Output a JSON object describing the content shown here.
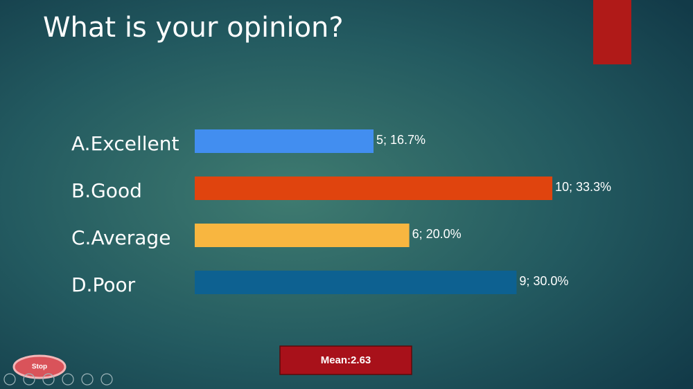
{
  "chart_data": {
    "type": "bar",
    "orientation": "horizontal",
    "title": "What is your opinion?",
    "categories": [
      "A.Excellent",
      "B.Good",
      "C.Average",
      "D.Poor"
    ],
    "values": [
      5,
      10,
      6,
      9
    ],
    "value_labels": [
      "5;  16.7%",
      "10;  33.3%",
      "6;  20.0%",
      "9;  30.0%"
    ],
    "colors": [
      "#428ef0",
      "#e0440e",
      "#f8b640",
      "#0d6191"
    ]
  },
  "footer": {
    "mean": "Mean:2.63",
    "stop_button": "Stop"
  }
}
